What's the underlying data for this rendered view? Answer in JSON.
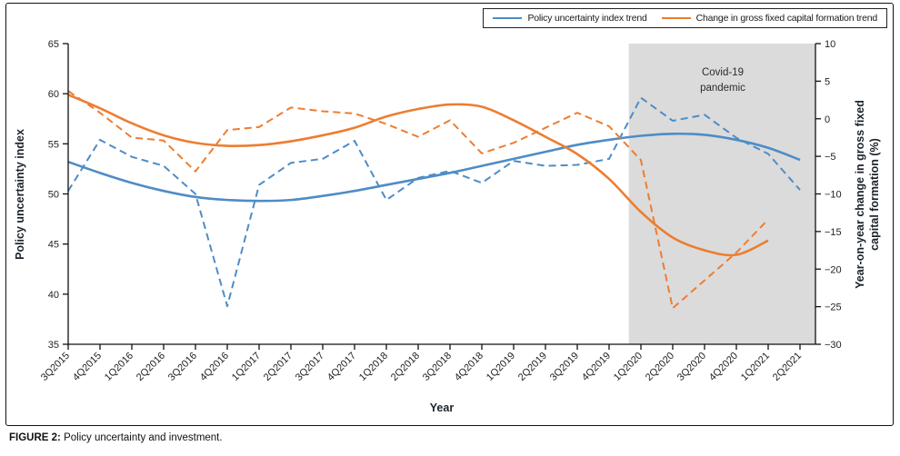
{
  "figure": {
    "caption_label": "FIGURE 2:",
    "caption_text": " Policy uncertainty and investment."
  },
  "legend": {
    "items": [
      {
        "label": "Policy uncertainty index trend",
        "color": "#4E8CC6"
      },
      {
        "label": "Change in gross fixed capital formation trend",
        "color": "#ED7D31"
      }
    ]
  },
  "annotation": {
    "line1": "Covid-19",
    "line2": "pandemic"
  },
  "chart_data": {
    "type": "line",
    "title": "",
    "categories": [
      "3Q2015",
      "4Q2015",
      "1Q2016",
      "2Q2016",
      "3Q2016",
      "4Q2016",
      "1Q2017",
      "2Q2017",
      "3Q2017",
      "4Q2017",
      "1Q2018",
      "2Q2018",
      "3Q2018",
      "4Q2018",
      "1Q2019",
      "2Q2019",
      "3Q2019",
      "4Q2019",
      "1Q2020",
      "2Q2020",
      "3Q2020",
      "4Q2020",
      "1Q2021",
      "2Q2021"
    ],
    "series": [
      {
        "id": "pui-trend-line",
        "name": "Policy uncertainty index trend",
        "axis": "left",
        "style": "solid",
        "color": "#4E8CC6",
        "values": [
          53.2,
          52.1,
          51.1,
          50.3,
          49.7,
          49.4,
          49.3,
          49.4,
          49.8,
          50.3,
          50.9,
          51.5,
          52.1,
          52.8,
          53.5,
          54.2,
          54.9,
          55.4,
          55.8,
          56.0,
          55.9,
          55.4,
          54.6,
          53.4
        ]
      },
      {
        "id": "pui-actual-line",
        "name": "Policy uncertainty index",
        "axis": "left",
        "style": "dashed",
        "color": "#4E8CC6",
        "values": [
          50.3,
          55.4,
          53.7,
          52.8,
          50.0,
          38.8,
          50.9,
          53.1,
          53.5,
          55.3,
          49.4,
          51.6,
          52.3,
          51.1,
          53.3,
          52.8,
          52.9,
          53.5,
          59.6,
          57.3,
          57.9,
          55.6,
          54.0,
          50.4
        ]
      },
      {
        "id": "gfcf-trend-line",
        "name": "Change in gross fixed capital formation trend",
        "axis": "right",
        "style": "solid",
        "color": "#ED7D31",
        "values": [
          3.2,
          1.4,
          -0.6,
          -2.2,
          -3.2,
          -3.6,
          -3.5,
          -3.0,
          -2.2,
          -1.2,
          0.3,
          1.3,
          1.9,
          1.6,
          -0.2,
          -2.4,
          -4.7,
          -8.0,
          -12.4,
          -15.8,
          -17.5,
          -18.1,
          -16.2,
          null
        ]
      },
      {
        "id": "gfcf-actual-line",
        "name": "Change in gross fixed capital formation",
        "axis": "right",
        "style": "dashed",
        "color": "#ED7D31",
        "values": [
          3.7,
          0.8,
          -2.5,
          -2.9,
          -7.0,
          -1.5,
          -1.1,
          1.5,
          1.0,
          0.7,
          -0.7,
          -2.4,
          -0.2,
          -4.6,
          -3.2,
          -1.2,
          0.8,
          -1.0,
          -5.5,
          -25.2,
          -21.5,
          -17.8,
          -13.4,
          null
        ]
      }
    ],
    "left_axis": {
      "label": "Policy uncertainty index",
      "min": 35,
      "max": 65,
      "ticks": [
        65,
        60,
        55,
        50,
        45,
        40,
        35
      ]
    },
    "right_axis": {
      "label_line1": "Year-on-year change in gross fixed",
      "label_line2": "capital formation (%)",
      "min": -30,
      "max": 10,
      "ticks": [
        10,
        5,
        0,
        -5,
        -10,
        -15,
        -20,
        -25,
        -30
      ]
    },
    "x_axis": {
      "label": "Year"
    },
    "shaded_region": {
      "start_category": "1Q2020",
      "end": "plot-right-edge",
      "color": "#dbdbdb",
      "label": "Covid-19 pandemic"
    },
    "grid": "off",
    "legend_position": "top-right"
  }
}
